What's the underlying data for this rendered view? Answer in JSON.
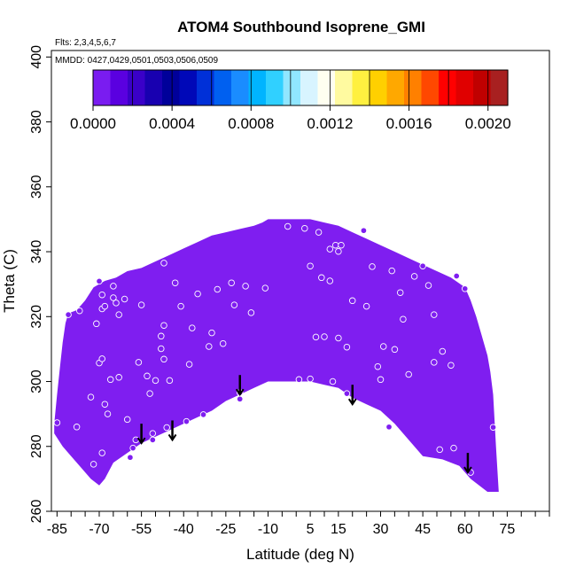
{
  "chart_data": {
    "type": "heatmap",
    "title": "ATOM4 Southbound Isoprene_GMI",
    "flights_note": "Flts: 2,3,4,5,6,7",
    "dates_note": "MMDD: 0427,0429,0501,0503,0506,0509",
    "xlabel": "Latitude (deg N)",
    "ylabel": "Theta (C)",
    "xlim": [
      -87,
      90
    ],
    "ylim": [
      260,
      402
    ],
    "x_ticks_minor": [
      -85,
      -80,
      -75,
      -70,
      -65,
      -60,
      -55,
      -50,
      -45,
      -40,
      -35,
      -30,
      -25,
      -20,
      -15,
      -10,
      -5,
      0,
      5,
      10,
      15,
      20,
      25,
      30,
      35,
      40,
      45,
      50,
      55,
      60,
      65,
      70,
      75,
      80,
      85,
      90
    ],
    "x_tick_labels": [
      "-85",
      "-70",
      "-55",
      "-40",
      "-25",
      "-10",
      "5",
      "15",
      "30",
      "45",
      "60",
      "75"
    ],
    "x_tick_label_values": [
      -85,
      -70,
      -55,
      -40,
      -25,
      -10,
      5,
      15,
      30,
      45,
      60,
      75
    ],
    "y_tick_labels": [
      "260",
      "280",
      "300",
      "320",
      "340",
      "360",
      "380",
      "400"
    ],
    "y_tick_values": [
      260,
      280,
      300,
      320,
      340,
      360,
      380,
      400
    ],
    "colorbar": {
      "min": 0.0,
      "max": 0.0021,
      "tick_labels": [
        "0.0000",
        "0.0004",
        "0.0008",
        "0.0012",
        "0.0016",
        "0.0020"
      ],
      "tick_values": [
        0.0,
        0.0004,
        0.0008,
        0.0012,
        0.0016,
        0.002
      ],
      "colors": [
        "#7a1cf0",
        "#5a00e0",
        "#3a00c8",
        "#1800b0",
        "#00009a",
        "#0008b8",
        "#0030d8",
        "#0060f0",
        "#1a8cff",
        "#00b4ff",
        "#30d0ff",
        "#90e6ff",
        "#d8f4ff",
        "#fffff0",
        "#fffaa0",
        "#fff040",
        "#ffd000",
        "#ffa800",
        "#ff8000",
        "#ff4800",
        "#ff0000",
        "#e00000",
        "#c00000",
        "#a82020"
      ]
    },
    "field_color": "#7f1ef0",
    "field_upper_boundary": [
      [
        -86,
        287
      ],
      [
        -85,
        296
      ],
      [
        -84,
        304
      ],
      [
        -83,
        312
      ],
      [
        -82,
        318
      ],
      [
        -81,
        321
      ],
      [
        -78,
        322
      ],
      [
        -75,
        325
      ],
      [
        -72,
        329
      ],
      [
        -68,
        331
      ],
      [
        -64,
        332
      ],
      [
        -60,
        334
      ],
      [
        -55,
        335
      ],
      [
        -50,
        337
      ],
      [
        -45,
        339
      ],
      [
        -40,
        341
      ],
      [
        -35,
        343
      ],
      [
        -30,
        345
      ],
      [
        -25,
        346
      ],
      [
        -20,
        347
      ],
      [
        -15,
        348
      ],
      [
        -12,
        349
      ],
      [
        -10,
        350
      ],
      [
        0,
        350
      ],
      [
        5,
        350
      ],
      [
        10,
        349
      ],
      [
        15,
        348
      ],
      [
        20,
        346
      ],
      [
        25,
        344
      ],
      [
        30,
        342
      ],
      [
        35,
        340
      ],
      [
        40,
        338
      ],
      [
        45,
        336
      ],
      [
        50,
        334
      ],
      [
        55,
        332
      ],
      [
        60,
        329
      ],
      [
        62,
        325
      ],
      [
        64,
        320
      ],
      [
        66,
        314
      ],
      [
        68,
        308
      ],
      [
        69,
        303
      ],
      [
        70,
        296
      ],
      [
        71,
        280
      ],
      [
        72,
        266
      ]
    ],
    "field_lower_boundary": [
      [
        72,
        266
      ],
      [
        68,
        266
      ],
      [
        62,
        270
      ],
      [
        58,
        274
      ],
      [
        52,
        276
      ],
      [
        45,
        277
      ],
      [
        40,
        282
      ],
      [
        35,
        287
      ],
      [
        30,
        291
      ],
      [
        25,
        293
      ],
      [
        20,
        295
      ],
      [
        15,
        298
      ],
      [
        10,
        299
      ],
      [
        5,
        300
      ],
      [
        0,
        300
      ],
      [
        -5,
        300
      ],
      [
        -10,
        300
      ],
      [
        -15,
        298
      ],
      [
        -20,
        296
      ],
      [
        -25,
        294
      ],
      [
        -30,
        291
      ],
      [
        -35,
        289
      ],
      [
        -40,
        287
      ],
      [
        -45,
        285
      ],
      [
        -50,
        283
      ],
      [
        -55,
        281
      ],
      [
        -60,
        278
      ],
      [
        -65,
        275
      ],
      [
        -68,
        270
      ],
      [
        -70,
        268
      ],
      [
        -73,
        270
      ],
      [
        -77,
        274
      ],
      [
        -80,
        277
      ],
      [
        -83,
        280
      ],
      [
        -86,
        284
      ]
    ],
    "observations": [
      [
        -85,
        287.3
      ],
      [
        -78,
        286
      ],
      [
        -81,
        320.6
      ],
      [
        -77,
        321.8
      ],
      [
        -73,
        295.2
      ],
      [
        -72,
        274.5
      ],
      [
        -71,
        317.8
      ],
      [
        -70,
        305.7
      ],
      [
        -70,
        330.9
      ],
      [
        -69,
        326.7
      ],
      [
        -69,
        322.4
      ],
      [
        -68,
        323.2
      ],
      [
        -69,
        307
      ],
      [
        -69,
        278
      ],
      [
        -68,
        293
      ],
      [
        -67,
        290
      ],
      [
        -66,
        300.6
      ],
      [
        -65,
        329.4
      ],
      [
        -65,
        325.8
      ],
      [
        -64,
        324.2
      ],
      [
        -63,
        320.6
      ],
      [
        -63,
        301.3
      ],
      [
        -61,
        325.4
      ],
      [
        -60,
        288.3
      ],
      [
        -59,
        276.6
      ],
      [
        -58,
        279.5
      ],
      [
        -57,
        282
      ],
      [
        -56,
        305.9
      ],
      [
        -55,
        323.6
      ],
      [
        -53,
        301.7
      ],
      [
        -52,
        296.3
      ],
      [
        -51,
        282
      ],
      [
        -51,
        284
      ],
      [
        -50,
        300.3
      ],
      [
        -48,
        314
      ],
      [
        -48,
        310.1
      ],
      [
        -47,
        306.9
      ],
      [
        -47,
        317.3
      ],
      [
        -47,
        336.5
      ],
      [
        -46,
        285.8
      ],
      [
        -45,
        300.3
      ],
      [
        -43,
        330.4
      ],
      [
        -41,
        323.2
      ],
      [
        -39,
        287.7
      ],
      [
        -38,
        305.3
      ],
      [
        -37,
        316.5
      ],
      [
        -35,
        327
      ],
      [
        -33,
        289.8
      ],
      [
        -31,
        310.8
      ],
      [
        -30,
        315
      ],
      [
        -28,
        328.4
      ],
      [
        -26,
        311.7
      ],
      [
        -23,
        330.4
      ],
      [
        -22,
        323.6
      ],
      [
        -20,
        296.6
      ],
      [
        -20,
        294.6
      ],
      [
        -18,
        329.4
      ],
      [
        -16,
        321.2
      ],
      [
        -11,
        328.8
      ],
      [
        -3,
        347.8
      ],
      [
        1,
        300.6
      ],
      [
        3,
        347.2
      ],
      [
        5,
        335.6
      ],
      [
        5,
        300.8
      ],
      [
        7,
        313.7
      ],
      [
        8,
        346
      ],
      [
        9,
        332
      ],
      [
        10,
        313.8
      ],
      [
        12,
        340.8
      ],
      [
        12,
        331
      ],
      [
        13,
        300
      ],
      [
        14,
        342
      ],
      [
        15,
        340.1
      ],
      [
        15,
        313.4
      ],
      [
        16,
        342
      ],
      [
        18,
        310.6
      ],
      [
        18,
        296.3
      ],
      [
        20,
        324.9
      ],
      [
        24,
        346.5
      ],
      [
        25,
        323.2
      ],
      [
        27,
        335.4
      ],
      [
        29,
        304.6
      ],
      [
        30,
        300.6
      ],
      [
        31,
        310.8
      ],
      [
        33,
        286
      ],
      [
        34,
        334.1
      ],
      [
        35,
        309.9
      ],
      [
        37,
        327.4
      ],
      [
        38,
        319.2
      ],
      [
        40,
        302.2
      ],
      [
        42,
        332.4
      ],
      [
        45,
        335.6
      ],
      [
        47,
        329.6
      ],
      [
        49,
        320.6
      ],
      [
        49,
        305.9
      ],
      [
        51,
        279
      ],
      [
        52,
        309.3
      ],
      [
        55,
        305
      ],
      [
        56,
        279.5
      ],
      [
        57,
        332.5
      ],
      [
        60,
        328.6
      ],
      [
        62,
        272
      ],
      [
        70,
        285.9
      ]
    ],
    "arrows": [
      [
        -55,
        287
      ],
      [
        -44,
        288
      ],
      [
        -20,
        302
      ],
      [
        20,
        299
      ],
      [
        61,
        278
      ]
    ]
  }
}
